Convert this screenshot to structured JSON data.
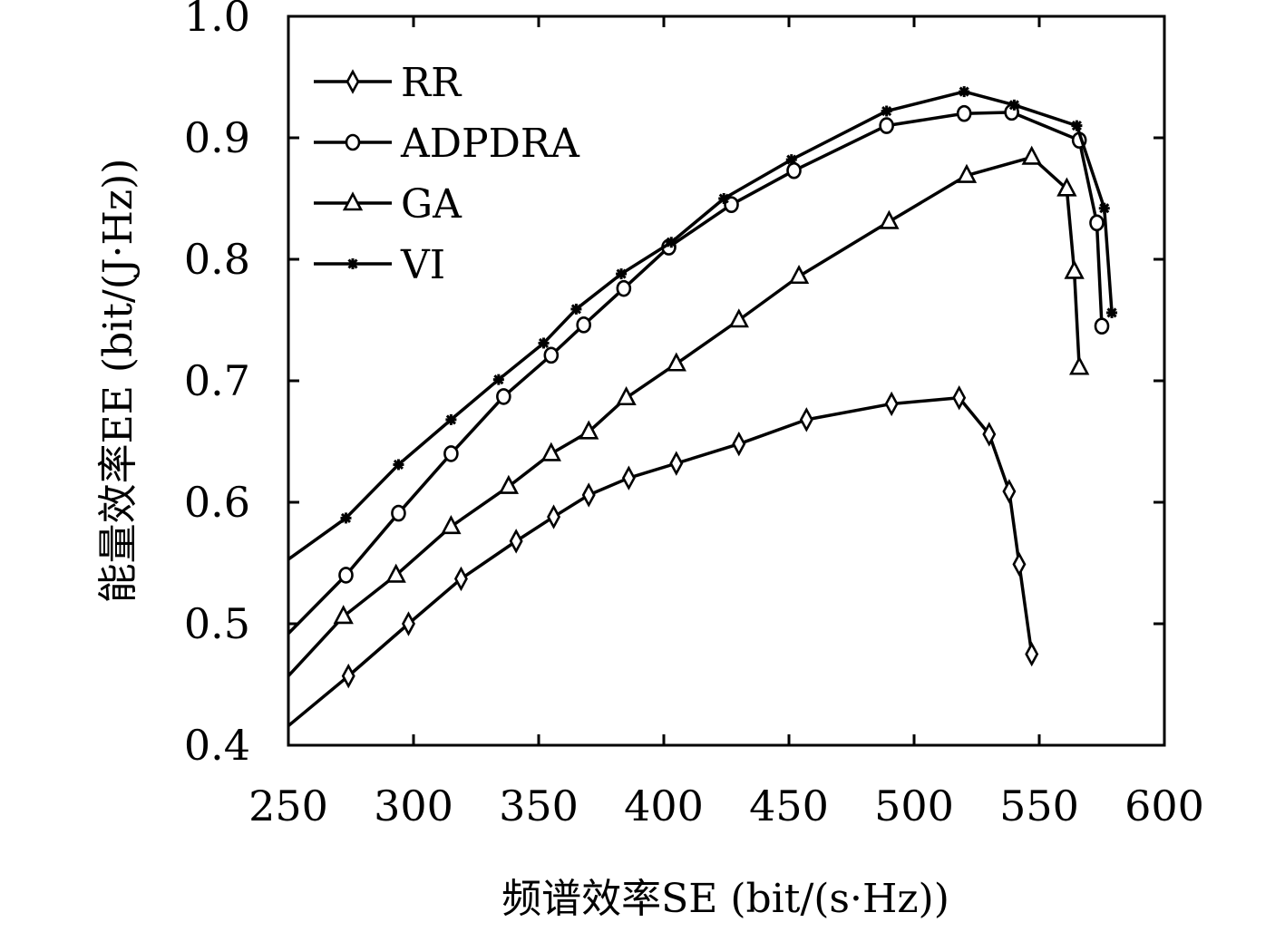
{
  "chart_data": {
    "type": "line",
    "xlabel": "频谱效率SE (bit/(s·Hz))",
    "ylabel": "能量效率EE (bit/(J·Hz))",
    "xlim": [
      250,
      600
    ],
    "ylim": [
      0.4,
      1.0
    ],
    "xticks": [
      "250",
      "300",
      "350",
      "400",
      "450",
      "500",
      "550",
      "600"
    ],
    "yticks": [
      "0.4",
      "0.5",
      "0.6",
      "0.7",
      "0.8",
      "0.9",
      "1.0"
    ],
    "legend_position": "top-left",
    "grid": false,
    "series": [
      {
        "name": "RR",
        "marker": "diamond",
        "x": [
          250,
          274,
          298,
          319,
          341,
          356,
          370,
          386,
          405,
          430,
          457,
          491,
          518,
          530,
          538,
          542,
          547
        ],
        "y": [
          0.416,
          0.457,
          0.5,
          0.537,
          0.568,
          0.588,
          0.606,
          0.62,
          0.632,
          0.648,
          0.668,
          0.681,
          0.686,
          0.656,
          0.609,
          0.549,
          0.475
        ]
      },
      {
        "name": "ADPDRA",
        "marker": "circle",
        "x": [
          250,
          273,
          294,
          315,
          336,
          355,
          368,
          384,
          402,
          427,
          452,
          489,
          520,
          539,
          566,
          573,
          575
        ],
        "y": [
          0.492,
          0.54,
          0.591,
          0.64,
          0.687,
          0.721,
          0.746,
          0.776,
          0.81,
          0.845,
          0.873,
          0.91,
          0.92,
          0.921,
          0.898,
          0.83,
          0.745
        ]
      },
      {
        "name": "GA",
        "marker": "triangle",
        "x": [
          250,
          272,
          293,
          315,
          338,
          355,
          370,
          385,
          405,
          430,
          454,
          490,
          521,
          547,
          561,
          564,
          566
        ],
        "y": [
          0.457,
          0.506,
          0.54,
          0.58,
          0.613,
          0.64,
          0.658,
          0.686,
          0.714,
          0.75,
          0.786,
          0.831,
          0.869,
          0.884,
          0.858,
          0.79,
          0.711
        ]
      },
      {
        "name": "VI",
        "marker": "asterisk",
        "x": [
          250,
          273,
          294,
          315,
          334,
          352,
          365,
          383,
          403,
          424,
          451,
          489,
          520,
          540,
          565,
          576,
          579
        ],
        "y": [
          0.553,
          0.587,
          0.631,
          0.668,
          0.701,
          0.731,
          0.759,
          0.788,
          0.814,
          0.85,
          0.882,
          0.922,
          0.938,
          0.927,
          0.91,
          0.842,
          0.756
        ]
      }
    ]
  }
}
